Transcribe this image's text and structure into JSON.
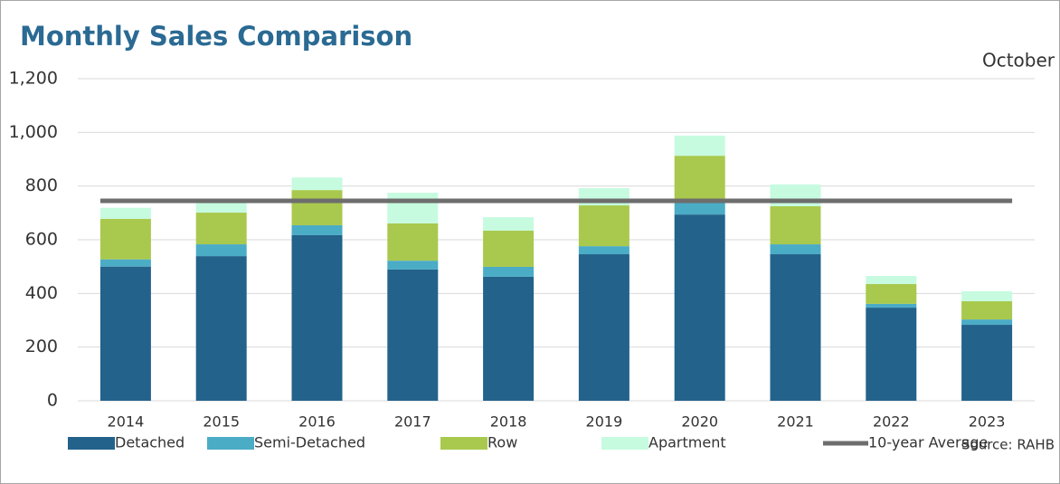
{
  "chart_data": {
    "type": "stacked_bar",
    "title": "Monthly Sales Comparison",
    "subtitle": "October",
    "source": "Source: RAHB",
    "categories": [
      "2014",
      "2015",
      "2016",
      "2017",
      "2018",
      "2019",
      "2020",
      "2021",
      "2022",
      "2023"
    ],
    "series": [
      {
        "name": "Detached",
        "color": "#23628b",
        "values": [
          500,
          539,
          617,
          489,
          462,
          546,
          694,
          546,
          347,
          283
        ]
      },
      {
        "name": "Semi-Detached",
        "color": "#4bacc6",
        "values": [
          27,
          44,
          37,
          33,
          37,
          30,
          44,
          37,
          14,
          20
        ]
      },
      {
        "name": "Row",
        "color": "#a9c94e",
        "values": [
          151,
          118,
          131,
          139,
          135,
          152,
          175,
          142,
          74,
          68
        ]
      },
      {
        "name": "Apartment",
        "color": "#c6fbe0",
        "values": [
          41,
          37,
          47,
          114,
          50,
          64,
          75,
          81,
          30,
          37
        ]
      }
    ],
    "average": {
      "name": "10-year Average",
      "value": 745,
      "color": "#6d6d6d"
    },
    "ylim": [
      0,
      1200
    ],
    "yticks": [
      0,
      200,
      400,
      600,
      800,
      {
        "value": 1000,
        "label": "1,000"
      },
      {
        "value": 1200,
        "label": "1,200"
      }
    ],
    "grid": true
  }
}
